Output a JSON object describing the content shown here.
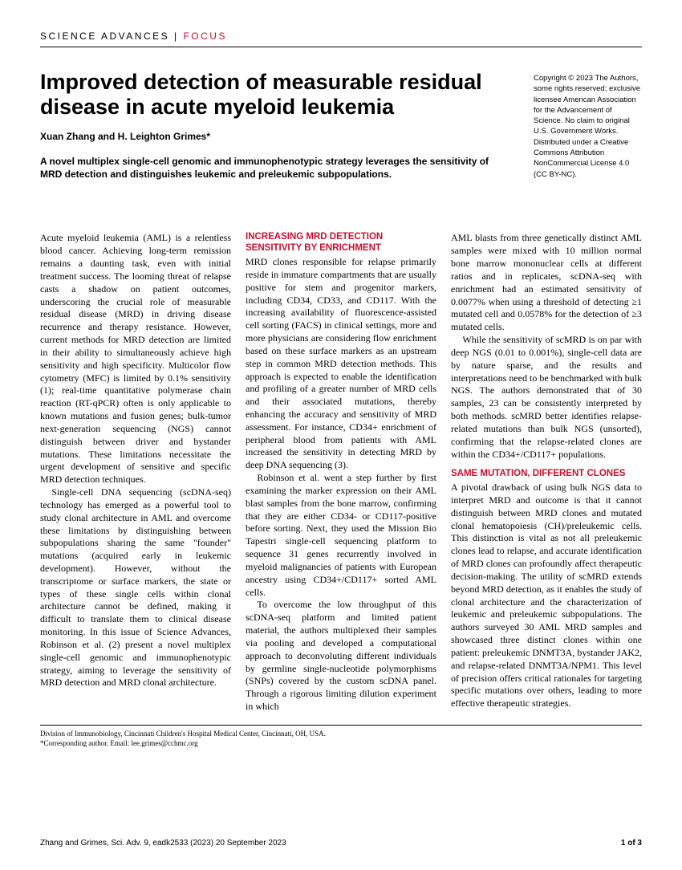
{
  "header": {
    "journal": "SCIENCE ADVANCES",
    "separator": " | ",
    "section": "FOCUS"
  },
  "article": {
    "title": "Improved detection of measurable residual disease in acute myeloid leukemia",
    "authors": "Xuan Zhang and H. Leighton Grimes*",
    "abstract": "A novel multiplex single-cell genomic and immunophenotypic strategy leverages the sensitivity of MRD detection and distinguishes leukemic and preleukemic subpopulations.",
    "copyright": "Copyright © 2023 The Authors, some rights reserved; exclusive licensee American Association for the Advancement of Science. No claim to original U.S. Government Works. Distributed under a Creative Commons Attribution NonCommercial License 4.0 (CC BY-NC)."
  },
  "col1": {
    "p1": "Acute myeloid leukemia (AML) is a relentless blood cancer. Achieving long-term remission remains a daunting task, even with initial treatment success. The looming threat of relapse casts a shadow on patient outcomes, underscoring the crucial role of measurable residual disease (MRD) in driving disease recurrence and therapy resistance. However, current methods for MRD detection are limited in their ability to simultaneously achieve high sensitivity and high specificity. Multicolor flow cytometry (MFC) is limited by 0.1% sensitivity (1); real-time quantitative polymerase chain reaction (RT-qPCR) often is only applicable to known mutations and fusion genes; bulk-tumor next-generation sequencing (NGS) cannot distinguish between driver and bystander mutations. These limitations necessitate the urgent development of sensitive and specific MRD detection techniques.",
    "p2": "Single-cell DNA sequencing (scDNA-seq) technology has emerged as a powerful tool to study clonal architecture in AML and overcome these limitations by distinguishing between subpopulations sharing the same \"founder\" mutations (acquired early in leukemic development). However, without the transcriptome or surface markers, the state or types of these single cells within clonal architecture cannot be defined, making it difficult to translate them to clinical disease monitoring. In this issue of Science Advances, Robinson et al. (2) present a novel multiplex single-cell genomic and immunophenotypic strategy, aiming to leverage the sensitivity of MRD detection and MRD clonal architecture."
  },
  "col2": {
    "head1": "INCREASING MRD DETECTION SENSITIVITY BY ENRICHMENT",
    "p1": "MRD clones responsible for relapse primarily reside in immature compartments that are usually positive for stem and progenitor markers, including CD34, CD33, and CD117. With the increasing availability of fluorescence-assisted cell sorting (FACS) in clinical settings, more and more physicians are considering flow enrichment based on these surface markers as an upstream step in common MRD detection methods. This approach is expected to enable the identification and profiling of a greater number of MRD cells and their associated mutations, thereby enhancing the accuracy and sensitivity of MRD assessment. For instance, CD34+ enrichment of peripheral blood from patients with AML increased the sensitivity in detecting MRD by deep DNA sequencing (3).",
    "p2": "Robinson et al. went a step further by first examining the marker expression on their AML blast samples from the bone marrow, confirming that they are either CD34- or CD117-positive before sorting. Next, they used the Mission Bio Tapestri single-cell sequencing platform to sequence 31 genes recurrently involved in myeloid malignancies of patients with European ancestry using CD34+/CD117+ sorted AML cells.",
    "p3": "To overcome the low throughput of this scDNA-seq platform and limited patient material, the authors multiplexed their samples via pooling and developed a computational approach to deconvoluting different individuals by germline single-nucleotide polymorphisms (SNPs) covered by the custom scDNA panel. Through a rigorous limiting dilution experiment in which"
  },
  "col3": {
    "p1": "AML blasts from three genetically distinct AML samples were mixed with 10 million normal bone marrow mononuclear cells at different ratios and in replicates, scDNA-seq with enrichment had an estimated sensitivity of 0.0077% when using a threshold of detecting ≥1 mutated cell and 0.0578% for the detection of ≥3 mutated cells.",
    "p2": "While the sensitivity of scMRD is on par with deep NGS (0.01 to 0.001%), single-cell data are by nature sparse, and the results and interpretations need to be benchmarked with bulk NGS. The authors demonstrated that of 30 samples, 23 can be consistently interpreted by both methods. scMRD better identifies relapse-related mutations than bulk NGS (unsorted), confirming that the relapse-related clones are within the CD34+/CD117+ populations.",
    "head2": "SAME MUTATION, DIFFERENT CLONES",
    "p3": "A pivotal drawback of using bulk NGS data to interpret MRD and outcome is that it cannot distinguish between MRD clones and mutated clonal hematopoiesis (CH)/preleukemic cells. This distinction is vital as not all preleukemic clones lead to relapse, and accurate identification of MRD clones can profoundly affect therapeutic decision-making. The utility of scMRD extends beyond MRD detection, as it enables the study of clonal architecture and the characterization of leukemic and preleukemic subpopulations. The authors surveyed 30 AML MRD samples and showcased three distinct clones within one patient: preleukemic DNMT3A, bystander JAK2, and relapse-related DNMT3A/NPM1. This level of precision offers critical rationales for targeting specific mutations over others, leading to more effective therapeutic strategies."
  },
  "affiliation": {
    "line1": "Division of Immunobiology, Cincinnati Children's Hospital Medical Center, Cincinnati, OH, USA.",
    "line2": "*Corresponding author. Email: lee.grimes@cchmc.org"
  },
  "footer": {
    "citation": "Zhang and Grimes, Sci. Adv. 9, eadk2533 (2023)     20 September 2023",
    "page": "1 of 3"
  },
  "colors": {
    "accent": "#c8102e",
    "text": "#000000"
  }
}
